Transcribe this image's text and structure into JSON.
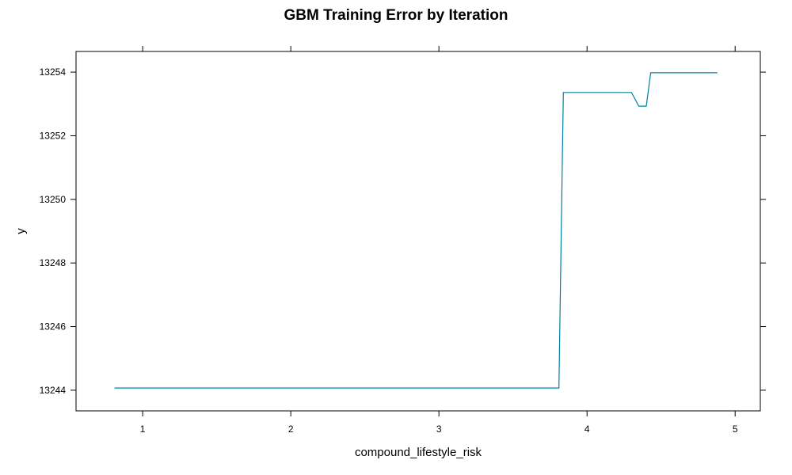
{
  "chart_data": {
    "type": "line",
    "title": "GBM Training Error by Iteration",
    "xlabel": "compound_lifestyle_risk",
    "ylabel": "y",
    "xlim": [
      0.55,
      5.17
    ],
    "ylim": [
      13243.35,
      13254.65
    ],
    "xticks": [
      1,
      2,
      3,
      4,
      5
    ],
    "yticks": [
      13244,
      13246,
      13248,
      13250,
      13252,
      13254
    ],
    "grid": false,
    "line_color": "#0080a0",
    "series": [
      {
        "x": [
          0.81,
          3.81,
          3.84,
          4.3,
          4.35,
          4.4,
          4.43,
          4.88
        ],
        "values": [
          13244.07,
          13244.07,
          13253.36,
          13253.36,
          13252.93,
          13252.93,
          13253.98,
          13253.98
        ]
      }
    ]
  }
}
